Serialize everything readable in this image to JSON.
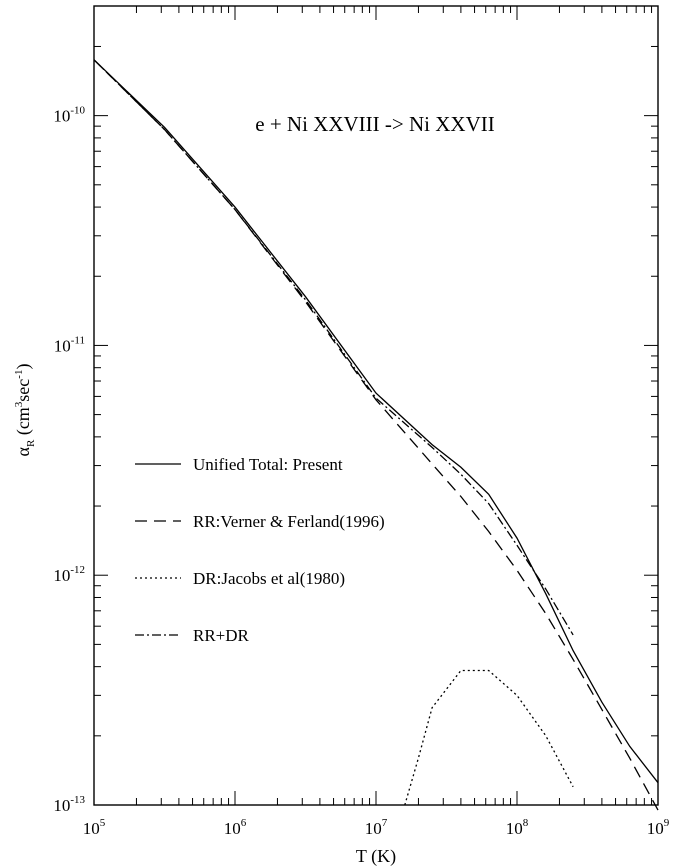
{
  "chart_data": {
    "type": "line",
    "title": "e + Ni XXVIII -> Ni XXVII",
    "xlabel": "T (K)",
    "ylabel": {
      "base": "α",
      "sub": "R",
      "unit_open": " (cm",
      "sup1": "3",
      "unit_mid": "sec",
      "sup2": "-1",
      "unit_close": ")"
    },
    "xscale": "log",
    "yscale": "log",
    "xlim": [
      100000,
      1000000000
    ],
    "ylim": [
      1e-13,
      3e-10
    ],
    "x_ticks": [
      {
        "base": "10",
        "exp": "5",
        "value": 100000
      },
      {
        "base": "10",
        "exp": "6",
        "value": 1000000
      },
      {
        "base": "10",
        "exp": "7",
        "value": 10000000
      },
      {
        "base": "10",
        "exp": "8",
        "value": 100000000
      },
      {
        "base": "10",
        "exp": "9",
        "value": 1000000000
      }
    ],
    "y_ticks": [
      {
        "base": "10",
        "exp": "-13",
        "value": 1e-13
      },
      {
        "base": "10",
        "exp": "-12",
        "value": 1e-12
      },
      {
        "base": "10",
        "exp": "-11",
        "value": 1e-11
      },
      {
        "base": "10",
        "exp": "-10",
        "value": 1e-10
      }
    ],
    "legend_position": "center-left",
    "series": [
      {
        "name": "Unified Total: Present",
        "style": "solid",
        "points": [
          [
            100000,
            1.75e-10
          ],
          [
            316000,
            8.9e-11
          ],
          [
            1000000,
            4e-11
          ],
          [
            3160000,
            1.63e-11
          ],
          [
            10000000,
            6.2e-12
          ],
          [
            25000000,
            3.7e-12
          ],
          [
            40000000,
            2.95e-12
          ],
          [
            63000000,
            2.25e-12
          ],
          [
            100000000,
            1.45e-12
          ],
          [
            160000000,
            8.3e-13
          ],
          [
            250000000,
            4.7e-13
          ],
          [
            400000000,
            2.8e-13
          ],
          [
            630000000,
            1.8e-13
          ],
          [
            1000000000,
            1.25e-13
          ]
        ]
      },
      {
        "name": "RR:Verner & Ferland(1996)",
        "style": "dashed",
        "points": [
          [
            100000,
            1.75e-10
          ],
          [
            316000,
            8.7e-11
          ],
          [
            1000000,
            3.9e-11
          ],
          [
            3160000,
            1.55e-11
          ],
          [
            10000000,
            5.8e-12
          ],
          [
            25000000,
            3.05e-12
          ],
          [
            40000000,
            2.2e-12
          ],
          [
            63000000,
            1.55e-12
          ],
          [
            100000000,
            1.05e-12
          ],
          [
            160000000,
            6.8e-13
          ],
          [
            250000000,
            4.3e-13
          ],
          [
            400000000,
            2.6e-13
          ],
          [
            630000000,
            1.6e-13
          ],
          [
            1000000000,
            9.5e-14
          ]
        ]
      },
      {
        "name": "DR:Jacobs et al(1980)",
        "style": "dotted",
        "points": [
          [
            16000000,
            1e-13
          ],
          [
            20000000,
            1.6e-13
          ],
          [
            25000000,
            2.65e-13
          ],
          [
            40000000,
            3.85e-13
          ],
          [
            63000000,
            3.85e-13
          ],
          [
            100000000,
            3e-13
          ],
          [
            160000000,
            2e-13
          ],
          [
            250000000,
            1.2e-13
          ]
        ]
      },
      {
        "name": "RR+DR",
        "style": "dashdot",
        "points": [
          [
            100000,
            1.75e-10
          ],
          [
            316000,
            8.7e-11
          ],
          [
            1000000,
            3.9e-11
          ],
          [
            3160000,
            1.58e-11
          ],
          [
            10000000,
            5.9e-12
          ],
          [
            25000000,
            3.6e-12
          ],
          [
            40000000,
            2.75e-12
          ],
          [
            63000000,
            2.05e-12
          ],
          [
            100000000,
            1.35e-12
          ],
          [
            160000000,
            8.7e-13
          ],
          [
            250000000,
            5.5e-13
          ]
        ]
      }
    ]
  }
}
